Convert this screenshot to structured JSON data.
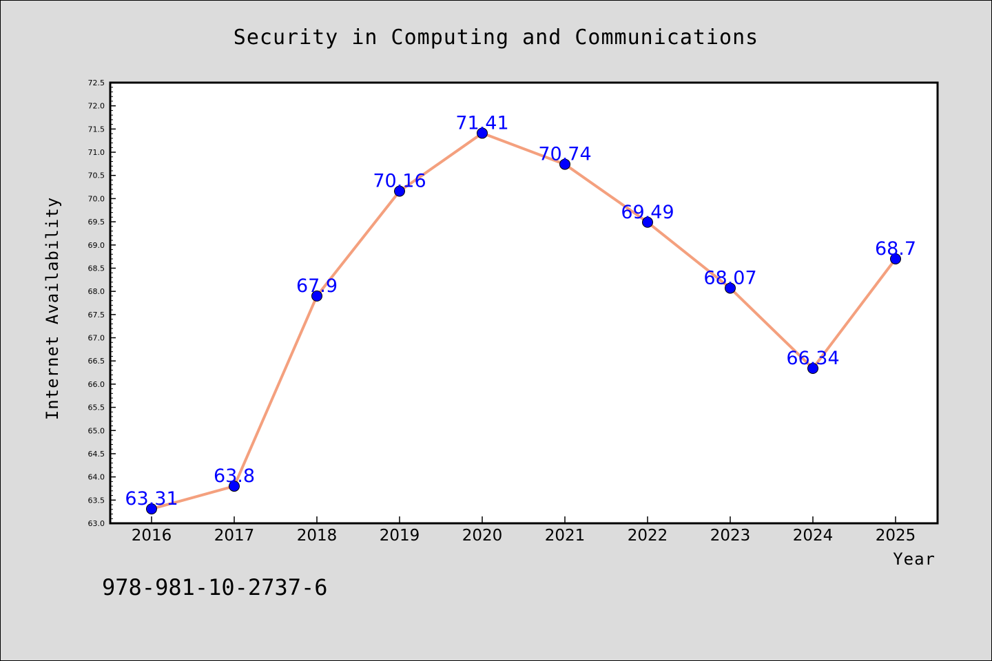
{
  "chart_data": {
    "type": "line",
    "title": "Security in Computing and Communications",
    "xlabel": "Year",
    "ylabel": "Internet Availability",
    "categories": [
      "2016",
      "2017",
      "2018",
      "2019",
      "2020",
      "2021",
      "2022",
      "2023",
      "2024",
      "2025"
    ],
    "series": [
      {
        "values": [
          63.31,
          63.8,
          67.9,
          70.16,
          71.41,
          70.74,
          69.49,
          68.07,
          66.34,
          68.7
        ],
        "data_labels": [
          "63.31",
          "63.8",
          "67.9",
          "70.16",
          "71.41",
          "70.74",
          "69.49",
          "68.07",
          "66.34",
          "68.7"
        ],
        "line_color": "#f4a07e",
        "marker_color": "#0000ff"
      }
    ],
    "ylim": [
      63.0,
      72.5
    ],
    "yticks": [
      "63.0",
      "63.5",
      "64.0",
      "64.5",
      "65.0",
      "65.5",
      "66.0",
      "66.5",
      "67.0",
      "67.5",
      "68.0",
      "68.5",
      "69.0",
      "69.5",
      "70.0",
      "70.5",
      "71.0",
      "71.5",
      "72.0",
      "72.5"
    ],
    "grid": false,
    "legend": "none"
  },
  "footnote": "978-981-10-2737-6",
  "colors": {
    "background": "#dcdcdc",
    "plot_background": "#ffffff",
    "line": "#f4a07e",
    "marker": "#0000ff",
    "data_label": "#0000ff"
  }
}
